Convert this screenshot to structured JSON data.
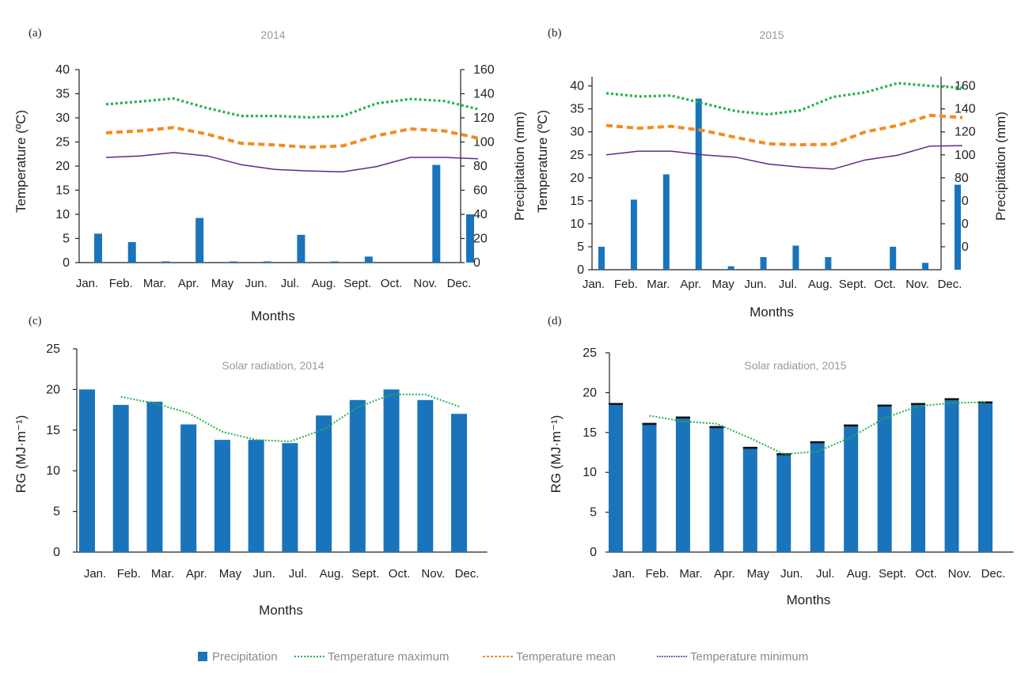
{
  "legend": {
    "precipitation": "Precipitation",
    "tmax": "Temperature maximum",
    "tmean": "Temperature mean",
    "tmin": "Temperature minimum"
  },
  "colors": {
    "precipitation": "#1a74bb",
    "tmax": "#22b24c",
    "tmean": "#f28c1e",
    "tmin": "#5b2a8c",
    "radiation_line": "#22b24c",
    "bar_cap": "#111111"
  },
  "chart_data": [
    {
      "panel": "(a)",
      "title": "2014",
      "type": "bar+line",
      "categories": [
        "Jan.",
        "Feb.",
        "Mar.",
        "Apr.",
        "May",
        "Jun.",
        "Jul.",
        "Aug.",
        "Sept.",
        "Oct.",
        "Nov.",
        "Dec."
      ],
      "xlabel": "Months",
      "ylabel_left": "Temperature (ºC)",
      "ylabel_right": "Precipitation (mm)",
      "ylim_left": [
        0,
        40
      ],
      "yticks_left": [
        0,
        5,
        10,
        15,
        20,
        25,
        30,
        35,
        40
      ],
      "ylim_right": [
        0,
        160
      ],
      "yticks_right": [
        0,
        20,
        40,
        60,
        80,
        100,
        120,
        140,
        160
      ],
      "bar_series": {
        "name": "Precipitation",
        "axis": "right",
        "values": [
          24,
          17,
          1,
          37,
          1,
          1,
          23,
          1,
          5,
          0,
          81,
          40
        ]
      },
      "line_series": [
        {
          "name": "Temperature maximum",
          "axis": "left",
          "values": [
            32.8,
            33.4,
            34.0,
            32.0,
            30.4,
            30.4,
            30.1,
            30.4,
            33.0,
            33.9,
            33.5,
            31.8
          ]
        },
        {
          "name": "Temperature mean",
          "axis": "left",
          "values": [
            26.9,
            27.3,
            28.0,
            26.6,
            24.7,
            24.4,
            23.9,
            24.2,
            26.3,
            27.7,
            27.3,
            25.8
          ]
        },
        {
          "name": "Temperature minimum",
          "axis": "left",
          "values": [
            21.8,
            22.1,
            22.8,
            22.1,
            20.3,
            19.3,
            19.0,
            18.8,
            19.9,
            21.8,
            21.8,
            21.5
          ]
        }
      ],
      "grid": false
    },
    {
      "panel": "(b)",
      "title": "2015",
      "type": "bar+line",
      "categories": [
        "Jan.",
        "Feb.",
        "Mar.",
        "Apr.",
        "May",
        "Jun.",
        "Jul.",
        "Aug.",
        "Sept.",
        "Oct.",
        "Nov.",
        "Dec."
      ],
      "xlabel": "Months",
      "ylabel_left": "Temperature (ºC)",
      "ylabel_right": "Precipitation (mm)",
      "ylim_left": [
        0,
        42
      ],
      "yticks_left": [
        0,
        5,
        10,
        15,
        20,
        25,
        30,
        35,
        40
      ],
      "ylim_right": [
        0,
        168
      ],
      "yticks_right": [
        20,
        40,
        60,
        80,
        100,
        120,
        140,
        160
      ],
      "bar_series": {
        "name": "Precipitation",
        "axis": "right",
        "values": [
          20,
          61,
          83,
          149,
          3,
          11,
          21,
          11,
          0,
          20,
          6,
          74
        ]
      },
      "line_series": [
        {
          "name": "Temperature maximum",
          "axis": "left",
          "values": [
            38.4,
            37.7,
            37.9,
            36.2,
            34.5,
            33.8,
            34.7,
            37.6,
            38.6,
            40.6,
            40.0,
            39.6
          ]
        },
        {
          "name": "Temperature mean",
          "axis": "left",
          "values": [
            31.4,
            30.8,
            31.2,
            30.3,
            28.8,
            27.4,
            27.2,
            27.3,
            30.0,
            31.4,
            33.6,
            33.1
          ]
        },
        {
          "name": "Temperature minimum",
          "axis": "left",
          "values": [
            25.0,
            25.8,
            25.8,
            25.0,
            24.5,
            23.0,
            22.3,
            21.9,
            23.9,
            24.9,
            26.9,
            27.0
          ]
        }
      ],
      "grid": false
    },
    {
      "panel": "(c)",
      "title": "Solar radiation, 2014",
      "type": "bar+line",
      "categories": [
        "Jan.",
        "Feb.",
        "Mar.",
        "Apr.",
        "May",
        "Jun.",
        "Jul.",
        "Aug.",
        "Sept.",
        "Oct.",
        "Nov.",
        "Dec."
      ],
      "xlabel": "Months",
      "ylabel": "RG (MJ·m⁻¹)",
      "ylim": [
        0,
        25
      ],
      "yticks": [
        0,
        5,
        10,
        15,
        20,
        25
      ],
      "bar_values": [
        20.0,
        18.1,
        18.5,
        15.7,
        13.8,
        13.8,
        13.4,
        16.8,
        18.7,
        20.0,
        18.7,
        17.0
      ],
      "moving_average": [
        null,
        19.1,
        18.3,
        17.1,
        14.8,
        13.8,
        13.6,
        15.1,
        17.8,
        19.4,
        19.4,
        17.9
      ],
      "grid": false
    },
    {
      "panel": "(d)",
      "title": "Solar radiation, 2015",
      "type": "bar+line",
      "categories": [
        "Jan.",
        "Feb.",
        "Mar.",
        "Apr.",
        "May",
        "Jun.",
        "Jul.",
        "Aug.",
        "Sept.",
        "Oct.",
        "Nov.",
        "Dec."
      ],
      "xlabel": "Months",
      "ylabel": "RG (MJ·m⁻¹)",
      "ylim": [
        0,
        25
      ],
      "yticks": [
        0,
        5,
        10,
        15,
        20,
        25
      ],
      "bar_values": [
        18.7,
        16.2,
        17.0,
        15.8,
        13.2,
        12.4,
        13.9,
        16.0,
        18.5,
        18.7,
        19.3,
        18.9
      ],
      "moving_average": [
        null,
        17.1,
        16.4,
        16.1,
        14.3,
        12.3,
        12.6,
        14.4,
        16.8,
        18.3,
        18.7,
        18.8
      ],
      "grid": false
    }
  ]
}
